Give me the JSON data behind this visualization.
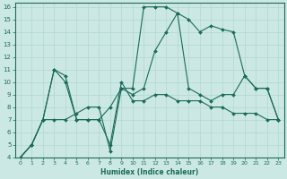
{
  "xlabel": "Humidex (Indice chaleur)",
  "ylabel": "",
  "bg_color": "#cce8e4",
  "line_color": "#1a6b5a",
  "grid_color": "#b0d8d0",
  "xlim": [
    -0.5,
    23.5
  ],
  "ylim": [
    4,
    16.3
  ],
  "xticks": [
    0,
    1,
    2,
    3,
    4,
    5,
    6,
    7,
    8,
    9,
    10,
    11,
    12,
    13,
    14,
    15,
    16,
    17,
    18,
    19,
    20,
    21,
    22,
    23
  ],
  "yticks": [
    4,
    5,
    6,
    7,
    8,
    9,
    10,
    11,
    12,
    13,
    14,
    15,
    16
  ],
  "lines": [
    {
      "x": [
        0,
        1,
        2,
        3,
        4,
        5,
        6,
        7,
        8,
        9,
        10,
        11,
        12,
        13,
        14,
        15,
        16,
        17,
        18,
        19,
        20,
        21,
        22,
        23
      ],
      "y": [
        4,
        5,
        7,
        7,
        7,
        7.5,
        8,
        8,
        4.5,
        9.5,
        9.5,
        16,
        16,
        16,
        15.5,
        15,
        14,
        14.5,
        14.2,
        14,
        10.5,
        9.5,
        9.5,
        7
      ]
    },
    {
      "x": [
        0,
        1,
        2,
        3,
        4,
        5,
        6,
        7,
        8,
        9,
        10,
        11,
        12,
        13,
        14,
        15,
        16,
        17,
        18,
        19,
        20,
        21,
        22,
        23
      ],
      "y": [
        4,
        5,
        7,
        11,
        10.5,
        7,
        7,
        7,
        5,
        10,
        8.5,
        8.5,
        9,
        9,
        8.5,
        8.5,
        8.5,
        8,
        8,
        7.5,
        7.5,
        7.5,
        7,
        7
      ]
    },
    {
      "x": [
        0,
        1,
        2,
        3,
        4,
        5,
        6,
        7,
        8,
        9,
        10,
        11,
        12,
        13,
        14,
        15,
        16,
        17,
        18,
        19,
        20,
        21,
        22,
        23
      ],
      "y": [
        4,
        5,
        7,
        11,
        10,
        7,
        7,
        7,
        8,
        9.5,
        9,
        9.5,
        12.5,
        14,
        15.5,
        9.5,
        9,
        8.5,
        9,
        9,
        10.5,
        9.5,
        9.5,
        7
      ]
    }
  ]
}
